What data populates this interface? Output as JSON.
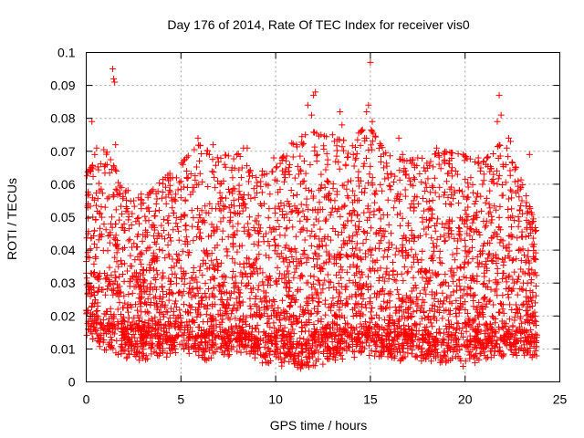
{
  "chart_data": {
    "type": "scatter",
    "title": "Day 176 of 2014, Rate Of TEC Index for receiver vis0",
    "xlabel": "GPS time / hours",
    "ylabel": "ROTI / TECUs",
    "xlim": [
      0,
      25
    ],
    "ylim": [
      0,
      0.1
    ],
    "x_ticks": [
      "0",
      "5",
      "10",
      "15",
      "20",
      "25"
    ],
    "x_tick_values": [
      0,
      5,
      10,
      15,
      20,
      25
    ],
    "y_ticks": [
      "0",
      "0.01",
      "0.02",
      "0.03",
      "0.04",
      "0.05",
      "0.06",
      "0.07",
      "0.08",
      "0.09",
      "0.1"
    ],
    "y_tick_values": [
      0,
      0.01,
      0.02,
      0.03,
      0.04,
      0.05,
      0.06,
      0.07,
      0.08,
      0.09,
      0.1
    ],
    "grid": true,
    "marker": "+",
    "marker_color": "#ff0000",
    "series": [
      {
        "name": "ROTI",
        "points": [
          [
            0.05,
            0.021
          ],
          [
            0.1,
            0.045
          ],
          [
            0.15,
            0.028
          ],
          [
            0.2,
            0.064
          ],
          [
            0.25,
            0.033
          ],
          [
            0.3,
            0.079
          ],
          [
            0.35,
            0.05
          ],
          [
            0.4,
            0.016
          ],
          [
            0.45,
            0.069
          ],
          [
            0.5,
            0.038
          ],
          [
            0.55,
            0.071
          ],
          [
            0.6,
            0.024
          ],
          [
            0.7,
            0.058
          ],
          [
            0.8,
            0.044
          ],
          [
            0.9,
            0.012
          ],
          [
            1.0,
            0.053
          ],
          [
            1.1,
            0.066
          ],
          [
            1.2,
            0.031
          ],
          [
            1.3,
            0.048
          ],
          [
            1.4,
            0.095
          ],
          [
            1.45,
            0.092
          ],
          [
            1.5,
            0.091
          ],
          [
            1.55,
            0.072
          ],
          [
            1.6,
            0.064
          ],
          [
            1.7,
            0.035
          ],
          [
            1.8,
            0.057
          ],
          [
            1.9,
            0.019
          ],
          [
            2.0,
            0.046
          ],
          [
            2.1,
            0.058
          ],
          [
            2.3,
            0.029
          ],
          [
            2.5,
            0.055
          ],
          [
            2.7,
            0.041
          ],
          [
            2.9,
            0.057
          ],
          [
            3.1,
            0.018
          ],
          [
            3.3,
            0.049
          ],
          [
            3.5,
            0.037
          ],
          [
            3.7,
            0.054
          ],
          [
            3.9,
            0.013
          ],
          [
            4.1,
            0.046
          ],
          [
            4.3,
            0.062
          ],
          [
            4.5,
            0.027
          ],
          [
            4.7,
            0.055
          ],
          [
            4.9,
            0.043
          ],
          [
            5.1,
            0.066
          ],
          [
            5.3,
            0.064
          ],
          [
            5.5,
            0.021
          ],
          [
            5.7,
            0.059
          ],
          [
            5.9,
            0.074
          ],
          [
            6.1,
            0.052
          ],
          [
            6.3,
            0.036
          ],
          [
            6.5,
            0.069
          ],
          [
            6.7,
            0.072
          ],
          [
            6.9,
            0.047
          ],
          [
            7.1,
            0.025
          ],
          [
            7.3,
            0.066
          ],
          [
            7.5,
            0.044
          ],
          [
            7.7,
            0.058
          ],
          [
            7.9,
            0.017
          ],
          [
            8.1,
            0.051
          ],
          [
            8.3,
            0.071
          ],
          [
            8.5,
            0.071
          ],
          [
            8.7,
            0.033
          ],
          [
            8.9,
            0.056
          ],
          [
            9.1,
            0.045
          ],
          [
            9.3,
            0.064
          ],
          [
            9.5,
            0.022
          ],
          [
            9.7,
            0.057
          ],
          [
            9.9,
            0.068
          ],
          [
            10.1,
            0.049
          ],
          [
            10.3,
            0.039
          ],
          [
            10.5,
            0.062
          ],
          [
            10.7,
            0.054
          ],
          [
            10.9,
            0.047
          ],
          [
            11.1,
            0.072
          ],
          [
            11.3,
            0.028
          ],
          [
            11.5,
            0.061
          ],
          [
            11.7,
            0.084
          ],
          [
            11.9,
            0.081
          ],
          [
            12.0,
            0.087
          ],
          [
            12.1,
            0.088
          ],
          [
            12.2,
            0.069
          ],
          [
            12.4,
            0.063
          ],
          [
            12.6,
            0.044
          ],
          [
            12.8,
            0.057
          ],
          [
            13.0,
            0.075
          ],
          [
            13.2,
            0.036
          ],
          [
            13.4,
            0.082
          ],
          [
            13.5,
            0.078
          ],
          [
            13.7,
            0.066
          ],
          [
            13.9,
            0.051
          ],
          [
            14.1,
            0.069
          ],
          [
            14.3,
            0.042
          ],
          [
            14.5,
            0.061
          ],
          [
            14.7,
            0.074
          ],
          [
            14.8,
            0.082
          ],
          [
            14.9,
            0.084
          ],
          [
            15.0,
            0.097
          ],
          [
            15.1,
            0.079
          ],
          [
            15.3,
            0.058
          ],
          [
            15.5,
            0.046
          ],
          [
            15.7,
            0.065
          ],
          [
            15.9,
            0.038
          ],
          [
            16.1,
            0.063
          ],
          [
            16.3,
            0.055
          ],
          [
            16.5,
            0.074
          ],
          [
            16.7,
            0.069
          ],
          [
            16.9,
            0.043
          ],
          [
            17.1,
            0.061
          ],
          [
            17.3,
            0.053
          ],
          [
            17.5,
            0.068
          ],
          [
            17.7,
            0.037
          ],
          [
            17.9,
            0.064
          ],
          [
            18.1,
            0.049
          ],
          [
            18.3,
            0.059
          ],
          [
            18.5,
            0.071
          ],
          [
            18.7,
            0.044
          ],
          [
            18.9,
            0.067
          ],
          [
            19.1,
            0.056
          ],
          [
            19.3,
            0.032
          ],
          [
            19.5,
            0.064
          ],
          [
            19.7,
            0.058
          ],
          [
            19.9,
            0.069
          ],
          [
            20.1,
            0.045
          ],
          [
            20.3,
            0.062
          ],
          [
            20.5,
            0.054
          ],
          [
            20.7,
            0.068
          ],
          [
            20.9,
            0.039
          ],
          [
            21.1,
            0.066
          ],
          [
            21.3,
            0.058
          ],
          [
            21.5,
            0.063
          ],
          [
            21.7,
            0.079
          ],
          [
            21.8,
            0.087
          ],
          [
            21.9,
            0.081
          ],
          [
            22.0,
            0.066
          ],
          [
            22.2,
            0.071
          ],
          [
            22.3,
            0.074
          ],
          [
            22.4,
            0.073
          ],
          [
            22.6,
            0.049
          ],
          [
            22.8,
            0.061
          ],
          [
            23.0,
            0.055
          ],
          [
            23.2,
            0.044
          ],
          [
            23.4,
            0.069
          ],
          [
            23.5,
            0.031
          ],
          [
            23.6,
            0.038
          ],
          [
            23.7,
            0.024
          ]
        ],
        "envelope": {
          "x_range": [
            0.0,
            23.8
          ],
          "min_values": [
            0.013,
            0.009,
            0.007,
            0.006,
            0.007,
            0.008,
            0.006,
            0.007,
            0.008,
            0.006,
            0.005,
            0.004,
            0.003,
            0.006,
            0.007,
            0.008,
            0.007,
            0.006,
            0.006,
            0.005,
            0.004,
            0.006,
            0.007,
            0.008,
            0.006
          ],
          "max_values": [
            0.063,
            0.071,
            0.059,
            0.055,
            0.061,
            0.066,
            0.072,
            0.068,
            0.07,
            0.062,
            0.064,
            0.073,
            0.076,
            0.074,
            0.073,
            0.078,
            0.069,
            0.067,
            0.068,
            0.07,
            0.069,
            0.066,
            0.072,
            0.064,
            0.046
          ]
        }
      }
    ]
  }
}
